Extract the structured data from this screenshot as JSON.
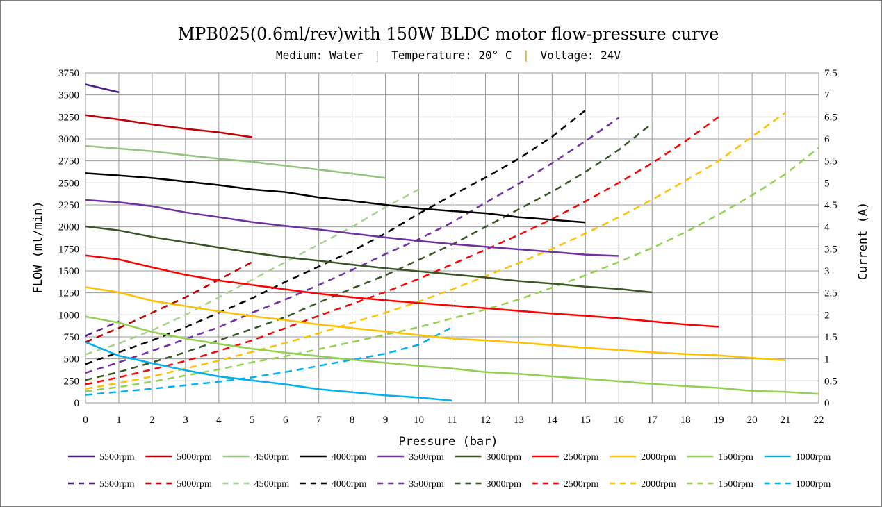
{
  "chart_data": {
    "type": "line",
    "title": "MPB025(0.6ml/rev)with 150W BLDC motor flow-pressure curve",
    "subtitle": {
      "medium": "Medium: Water",
      "temperature": "Temperature: 20° C",
      "voltage": "Voltage: 24V",
      "separator": "|"
    },
    "xlabel": "Pressure (bar)",
    "ylabel": "FLOW (ml/min)",
    "y2label": "Current (A)",
    "xlim": [
      0,
      22
    ],
    "ylim": [
      0,
      3750
    ],
    "y2lim": [
      0,
      7.5
    ],
    "x_ticks": [
      0,
      1,
      2,
      3,
      4,
      5,
      6,
      7,
      8,
      9,
      10,
      11,
      12,
      13,
      14,
      15,
      16,
      17,
      18,
      19,
      20,
      21,
      22
    ],
    "y_ticks": [
      0,
      250,
      500,
      750,
      1000,
      1250,
      1500,
      1750,
      2000,
      2250,
      2500,
      2750,
      3000,
      3250,
      3500,
      3750
    ],
    "y2_ticks": [
      "0",
      "0.5",
      "1",
      "1.5",
      "2",
      "2.5",
      "3",
      "3.5",
      "4",
      "4.5",
      "5",
      "5.5",
      "6",
      "6.5",
      "7",
      "7.5"
    ],
    "grid": true,
    "legend_position": "bottom",
    "flow_series": [
      {
        "name": "5500rpm",
        "color": "#4b1a8c",
        "x": [
          0,
          1
        ],
        "y": [
          3620,
          3530
        ]
      },
      {
        "name": "5000rpm",
        "color": "#c00000",
        "x": [
          0,
          1,
          2,
          3,
          4,
          5
        ],
        "y": [
          3270,
          3220,
          3165,
          3115,
          3075,
          3020
        ]
      },
      {
        "name": "4500rpm",
        "color": "#93c47d",
        "x": [
          0,
          1,
          2,
          3,
          4,
          5,
          6,
          7,
          8,
          9
        ],
        "y": [
          2920,
          2890,
          2860,
          2815,
          2775,
          2740,
          2695,
          2650,
          2605,
          2555
        ]
      },
      {
        "name": "4000rpm",
        "color": "#000000",
        "x": [
          0,
          1,
          2,
          3,
          4,
          5,
          6,
          7,
          8,
          9,
          10,
          11,
          12,
          13,
          14,
          15
        ],
        "y": [
          2610,
          2585,
          2555,
          2515,
          2475,
          2425,
          2395,
          2335,
          2295,
          2250,
          2210,
          2180,
          2155,
          2110,
          2080,
          2050
        ]
      },
      {
        "name": "3500rpm",
        "color": "#7030a0",
        "x": [
          0,
          1,
          2,
          3,
          4,
          5,
          6,
          7,
          8,
          9,
          10,
          11,
          12,
          13,
          14,
          15,
          16
        ],
        "y": [
          2305,
          2280,
          2235,
          2165,
          2110,
          2055,
          2010,
          1970,
          1925,
          1880,
          1840,
          1805,
          1775,
          1745,
          1715,
          1685,
          1670
        ]
      },
      {
        "name": "3000rpm",
        "color": "#375623",
        "x": [
          0,
          1,
          2,
          3,
          4,
          5,
          6,
          7,
          8,
          9,
          10,
          11,
          12,
          13,
          14,
          15,
          16,
          17
        ],
        "y": [
          2005,
          1960,
          1885,
          1825,
          1765,
          1705,
          1655,
          1615,
          1570,
          1530,
          1495,
          1460,
          1425,
          1385,
          1355,
          1320,
          1295,
          1255
        ]
      },
      {
        "name": "2500rpm",
        "color": "#ff0000",
        "x": [
          0,
          1,
          2,
          3,
          4,
          5,
          6,
          7,
          8,
          9,
          10,
          11,
          12,
          13,
          14,
          15,
          16,
          17,
          18,
          19
        ],
        "y": [
          1675,
          1630,
          1540,
          1455,
          1390,
          1340,
          1290,
          1240,
          1200,
          1165,
          1135,
          1105,
          1075,
          1045,
          1015,
          990,
          960,
          925,
          890,
          865
        ]
      },
      {
        "name": "2000rpm",
        "color": "#ffc000",
        "x": [
          0,
          1,
          2,
          3,
          4,
          5,
          6,
          7,
          8,
          9,
          10,
          11,
          12,
          13,
          14,
          15,
          16,
          17,
          18,
          19,
          20,
          21
        ],
        "y": [
          1315,
          1255,
          1160,
          1100,
          1040,
          985,
          940,
          890,
          850,
          810,
          770,
          730,
          710,
          685,
          655,
          625,
          600,
          575,
          555,
          540,
          510,
          485
        ]
      },
      {
        "name": "1500rpm",
        "color": "#92d050",
        "x": [
          0,
          1,
          2,
          3,
          4,
          5,
          6,
          7,
          8,
          9,
          10,
          11,
          12,
          13,
          14,
          15,
          16,
          17,
          18,
          19,
          20,
          21,
          22
        ],
        "y": [
          980,
          910,
          805,
          730,
          670,
          615,
          570,
          530,
          490,
          455,
          420,
          390,
          350,
          330,
          300,
          275,
          245,
          215,
          190,
          170,
          135,
          125,
          100
        ]
      },
      {
        "name": "1000rpm",
        "color": "#00b0f0",
        "x": [
          0,
          1,
          2,
          3,
          4,
          5,
          6,
          7,
          8,
          9,
          10,
          11
        ],
        "y": [
          690,
          535,
          450,
          370,
          300,
          255,
          210,
          155,
          120,
          85,
          60,
          25
        ]
      }
    ],
    "current_series": [
      {
        "name": "5500rpm",
        "color": "#4b1a8c",
        "x": [
          0,
          1
        ],
        "y": [
          1.52,
          1.85
        ]
      },
      {
        "name": "5000rpm",
        "color": "#c00000",
        "x": [
          0,
          1,
          2,
          3,
          4,
          5
        ],
        "y": [
          1.38,
          1.7,
          2.05,
          2.4,
          2.8,
          3.2
        ]
      },
      {
        "name": "4500rpm",
        "color": "#a9d18e",
        "x": [
          0,
          1,
          2,
          3,
          4,
          5,
          6,
          7,
          8,
          9,
          10
        ],
        "y": [
          1.1,
          1.35,
          1.65,
          2.0,
          2.4,
          2.8,
          3.2,
          3.6,
          4.0,
          4.45,
          4.85
        ]
      },
      {
        "name": "4000rpm",
        "color": "#000000",
        "x": [
          0,
          1,
          2,
          3,
          4,
          5,
          6,
          7,
          8,
          9,
          10,
          11,
          12,
          13,
          14,
          15
        ],
        "y": [
          0.88,
          1.15,
          1.42,
          1.72,
          2.05,
          2.38,
          2.75,
          3.1,
          3.45,
          3.85,
          4.3,
          4.72,
          5.12,
          5.55,
          6.05,
          6.65
        ]
      },
      {
        "name": "3500rpm",
        "color": "#7030a0",
        "x": [
          0,
          1,
          2,
          3,
          4,
          5,
          6,
          7,
          8,
          9,
          10,
          11,
          12,
          13,
          14,
          15,
          16
        ],
        "y": [
          0.68,
          0.92,
          1.18,
          1.45,
          1.72,
          2.05,
          2.35,
          2.68,
          3.02,
          3.38,
          3.72,
          4.1,
          4.55,
          4.98,
          5.45,
          5.95,
          6.48
        ]
      },
      {
        "name": "3000rpm",
        "color": "#375623",
        "x": [
          0,
          1,
          2,
          3,
          4,
          5,
          6,
          7,
          8,
          9,
          10,
          11,
          12,
          13,
          14,
          15,
          16,
          17
        ],
        "y": [
          0.52,
          0.7,
          0.92,
          1.15,
          1.42,
          1.68,
          1.95,
          2.28,
          2.6,
          2.9,
          3.25,
          3.6,
          4.0,
          4.4,
          4.8,
          5.25,
          5.75,
          6.35
        ]
      },
      {
        "name": "2500rpm",
        "color": "#ff0000",
        "x": [
          0,
          1,
          2,
          3,
          4,
          5,
          6,
          7,
          8,
          9,
          10,
          11,
          12,
          13,
          14,
          15,
          16,
          17,
          18,
          19
        ],
        "y": [
          0.42,
          0.58,
          0.76,
          0.95,
          1.18,
          1.42,
          1.7,
          1.98,
          2.25,
          2.52,
          2.82,
          3.15,
          3.48,
          3.82,
          4.18,
          4.58,
          5.0,
          5.45,
          5.95,
          6.5
        ]
      },
      {
        "name": "2000rpm",
        "color": "#ffc000",
        "x": [
          0,
          1,
          2,
          3,
          4,
          5,
          6,
          7,
          8,
          9,
          10,
          11,
          12,
          13,
          14,
          15,
          16,
          17,
          18,
          19,
          20,
          21
        ],
        "y": [
          0.32,
          0.45,
          0.6,
          0.78,
          0.96,
          1.16,
          1.36,
          1.58,
          1.82,
          2.05,
          2.3,
          2.58,
          2.88,
          3.18,
          3.5,
          3.85,
          4.22,
          4.62,
          5.05,
          5.5,
          6.05,
          6.6
        ]
      },
      {
        "name": "1500rpm",
        "color": "#92d050",
        "x": [
          0,
          1,
          2,
          3,
          4,
          5,
          6,
          7,
          8,
          9,
          10,
          11,
          12,
          13,
          14,
          15,
          16,
          17,
          18,
          19,
          20,
          21,
          22
        ],
        "y": [
          0.26,
          0.36,
          0.48,
          0.62,
          0.76,
          0.92,
          1.06,
          1.22,
          1.38,
          1.55,
          1.72,
          1.92,
          2.12,
          2.35,
          2.62,
          2.9,
          3.2,
          3.52,
          3.88,
          4.28,
          4.72,
          5.2,
          5.8
        ]
      },
      {
        "name": "1000rpm",
        "color": "#00b0f0",
        "x": [
          0,
          1,
          2,
          3,
          4,
          5,
          6,
          7,
          8,
          9,
          10,
          11
        ],
        "y": [
          0.18,
          0.25,
          0.32,
          0.4,
          0.48,
          0.58,
          0.7,
          0.84,
          0.98,
          1.12,
          1.32,
          1.72
        ]
      }
    ]
  }
}
